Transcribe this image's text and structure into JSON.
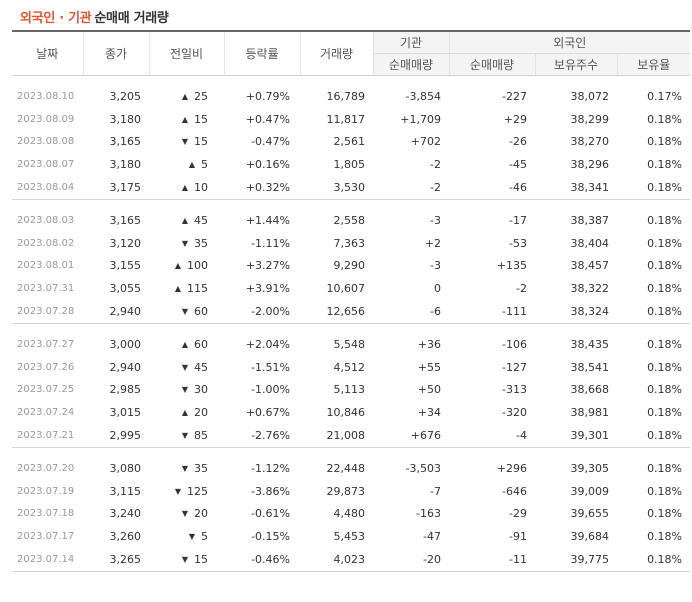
{
  "title": {
    "highlight": "외국인 · 기관",
    "rest": "순매매 거래량"
  },
  "headers": {
    "date": "날짜",
    "close": "종가",
    "change": "전일비",
    "rate": "등락률",
    "volume": "거래량",
    "inst_group": "기관",
    "inst_net": "순매매량",
    "foreign_group": "외국인",
    "foreign_net": "순매매량",
    "foreign_hold": "보유주수",
    "foreign_ratio": "보유율"
  },
  "colors": {
    "up": "#d80000",
    "down": "#1e63c4",
    "accent": "#e4572e"
  },
  "groups": [
    [
      {
        "date": "2023.08.10",
        "close": "3,205",
        "dir": "up",
        "change": "25",
        "rate": "+0.79%",
        "volume": "16,789",
        "inst": "-3,854",
        "foreign": "-227",
        "hold": "38,072",
        "ratio": "0.17%"
      },
      {
        "date": "2023.08.09",
        "close": "3,180",
        "dir": "up",
        "change": "15",
        "rate": "+0.47%",
        "volume": "11,817",
        "inst": "+1,709",
        "foreign": "+29",
        "hold": "38,299",
        "ratio": "0.18%"
      },
      {
        "date": "2023.08.08",
        "close": "3,165",
        "dir": "down",
        "change": "15",
        "rate": "-0.47%",
        "volume": "2,561",
        "inst": "+702",
        "foreign": "-26",
        "hold": "38,270",
        "ratio": "0.18%"
      },
      {
        "date": "2023.08.07",
        "close": "3,180",
        "dir": "up",
        "change": "5",
        "rate": "+0.16%",
        "volume": "1,805",
        "inst": "-2",
        "foreign": "-45",
        "hold": "38,296",
        "ratio": "0.18%"
      },
      {
        "date": "2023.08.04",
        "close": "3,175",
        "dir": "up",
        "change": "10",
        "rate": "+0.32%",
        "volume": "3,530",
        "inst": "-2",
        "foreign": "-46",
        "hold": "38,341",
        "ratio": "0.18%"
      }
    ],
    [
      {
        "date": "2023.08.03",
        "close": "3,165",
        "dir": "up",
        "change": "45",
        "rate": "+1.44%",
        "volume": "2,558",
        "inst": "-3",
        "foreign": "-17",
        "hold": "38,387",
        "ratio": "0.18%"
      },
      {
        "date": "2023.08.02",
        "close": "3,120",
        "dir": "down",
        "change": "35",
        "rate": "-1.11%",
        "volume": "7,363",
        "inst": "+2",
        "foreign": "-53",
        "hold": "38,404",
        "ratio": "0.18%"
      },
      {
        "date": "2023.08.01",
        "close": "3,155",
        "dir": "up",
        "change": "100",
        "rate": "+3.27%",
        "volume": "9,290",
        "inst": "-3",
        "foreign": "+135",
        "hold": "38,457",
        "ratio": "0.18%"
      },
      {
        "date": "2023.07.31",
        "close": "3,055",
        "dir": "up",
        "change": "115",
        "rate": "+3.91%",
        "volume": "10,607",
        "inst": "0",
        "foreign": "-2",
        "hold": "38,322",
        "ratio": "0.18%"
      },
      {
        "date": "2023.07.28",
        "close": "2,940",
        "dir": "down",
        "change": "60",
        "rate": "-2.00%",
        "volume": "12,656",
        "inst": "-6",
        "foreign": "-111",
        "hold": "38,324",
        "ratio": "0.18%"
      }
    ],
    [
      {
        "date": "2023.07.27",
        "close": "3,000",
        "dir": "up",
        "change": "60",
        "rate": "+2.04%",
        "volume": "5,548",
        "inst": "+36",
        "foreign": "-106",
        "hold": "38,435",
        "ratio": "0.18%"
      },
      {
        "date": "2023.07.26",
        "close": "2,940",
        "dir": "down",
        "change": "45",
        "rate": "-1.51%",
        "volume": "4,512",
        "inst": "+55",
        "foreign": "-127",
        "hold": "38,541",
        "ratio": "0.18%"
      },
      {
        "date": "2023.07.25",
        "close": "2,985",
        "dir": "down",
        "change": "30",
        "rate": "-1.00%",
        "volume": "5,113",
        "inst": "+50",
        "foreign": "-313",
        "hold": "38,668",
        "ratio": "0.18%"
      },
      {
        "date": "2023.07.24",
        "close": "3,015",
        "dir": "up",
        "change": "20",
        "rate": "+0.67%",
        "volume": "10,846",
        "inst": "+34",
        "foreign": "-320",
        "hold": "38,981",
        "ratio": "0.18%"
      },
      {
        "date": "2023.07.21",
        "close": "2,995",
        "dir": "down",
        "change": "85",
        "rate": "-2.76%",
        "volume": "21,008",
        "inst": "+676",
        "foreign": "-4",
        "hold": "39,301",
        "ratio": "0.18%"
      }
    ],
    [
      {
        "date": "2023.07.20",
        "close": "3,080",
        "dir": "down",
        "change": "35",
        "rate": "-1.12%",
        "volume": "22,448",
        "inst": "-3,503",
        "foreign": "+296",
        "hold": "39,305",
        "ratio": "0.18%"
      },
      {
        "date": "2023.07.19",
        "close": "3,115",
        "dir": "down",
        "change": "125",
        "rate": "-3.86%",
        "volume": "29,873",
        "inst": "-7",
        "foreign": "-646",
        "hold": "39,009",
        "ratio": "0.18%"
      },
      {
        "date": "2023.07.18",
        "close": "3,240",
        "dir": "down",
        "change": "20",
        "rate": "-0.61%",
        "volume": "4,480",
        "inst": "-163",
        "foreign": "-29",
        "hold": "39,655",
        "ratio": "0.18%"
      },
      {
        "date": "2023.07.17",
        "close": "3,260",
        "dir": "down",
        "change": "5",
        "rate": "-0.15%",
        "volume": "5,453",
        "inst": "-47",
        "foreign": "-91",
        "hold": "39,684",
        "ratio": "0.18%"
      },
      {
        "date": "2023.07.14",
        "close": "3,265",
        "dir": "down",
        "change": "15",
        "rate": "-0.46%",
        "volume": "4,023",
        "inst": "-20",
        "foreign": "-11",
        "hold": "39,775",
        "ratio": "0.18%"
      }
    ]
  ]
}
